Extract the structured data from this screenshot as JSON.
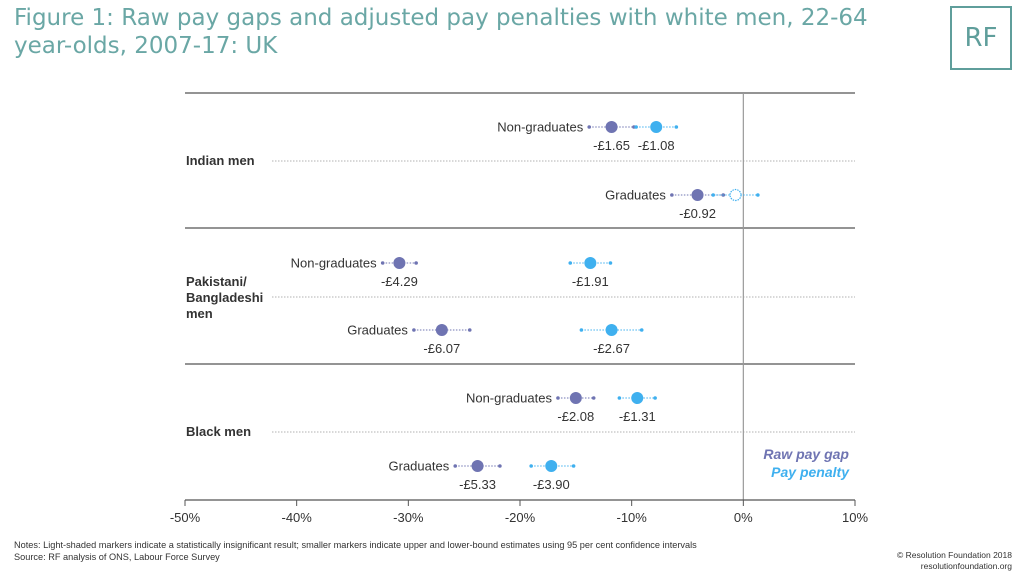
{
  "title": "Figure 1: Raw pay gaps and adjusted pay penalties with white men, 22-64 year-olds, 2007-17: UK",
  "logo": "RF",
  "notes": {
    "line1": "Notes: Light-shaded markers indicate a statistically insignificant result; smaller markers indicate upper and lower-bound estimates using 95 per cent confidence intervals",
    "line2": "Source: RF analysis of ONS, Labour Force Survey"
  },
  "copyright": {
    "line1": "© Resolution Foundation 2018",
    "line2": "resolutionfoundation.org"
  },
  "colors": {
    "raw": "#6f74b2",
    "penalty": "#3fb0ef",
    "teal": "#6aa7a5",
    "axis": "#555555"
  },
  "chart_data": {
    "type": "scatter",
    "xlim": [
      -0.5,
      0.1
    ],
    "xticks": [
      {
        "v": -0.5,
        "label": "-50%"
      },
      {
        "v": -0.4,
        "label": "-40%"
      },
      {
        "v": -0.3,
        "label": "-30%"
      },
      {
        "v": -0.2,
        "label": "-20%"
      },
      {
        "v": -0.1,
        "label": "-10%"
      },
      {
        "v": 0.0,
        "label": "0%"
      },
      {
        "v": 0.1,
        "label": "10%"
      }
    ],
    "legend": {
      "raw": "Raw pay gap",
      "penalty": "Pay penalty",
      "position": "bottom-right"
    },
    "groups": [
      {
        "label": [
          "Indian men"
        ],
        "rows": [
          {
            "name": "Non-graduates",
            "raw": {
              "value": -0.118,
              "low": -0.138,
              "high": -0.098,
              "label": "-£1.65"
            },
            "penalty": {
              "value": -0.078,
              "low": -0.096,
              "high": -0.06,
              "label": "-£1.08",
              "significant": true
            }
          },
          {
            "name": "Graduates",
            "raw": {
              "value": -0.041,
              "low": -0.064,
              "high": -0.018,
              "label": "-£0.92"
            },
            "penalty": {
              "value": -0.007,
              "low": -0.027,
              "high": 0.013,
              "label": "",
              "significant": false
            }
          }
        ]
      },
      {
        "label": [
          "Pakistani/",
          "Bangladeshi",
          "men"
        ],
        "rows": [
          {
            "name": "Non-graduates",
            "raw": {
              "value": -0.308,
              "low": -0.323,
              "high": -0.293,
              "label": "-£4.29"
            },
            "penalty": {
              "value": -0.137,
              "low": -0.155,
              "high": -0.119,
              "label": "-£1.91",
              "significant": true
            }
          },
          {
            "name": "Graduates",
            "raw": {
              "value": -0.27,
              "low": -0.295,
              "high": -0.245,
              "label": "-£6.07"
            },
            "penalty": {
              "value": -0.118,
              "low": -0.145,
              "high": -0.091,
              "label": "-£2.67",
              "significant": true
            }
          }
        ]
      },
      {
        "label": [
          "Black men"
        ],
        "rows": [
          {
            "name": "Non-graduates",
            "raw": {
              "value": -0.15,
              "low": -0.166,
              "high": -0.134,
              "label": "-£2.08"
            },
            "penalty": {
              "value": -0.095,
              "low": -0.111,
              "high": -0.079,
              "label": "-£1.31",
              "significant": true
            }
          },
          {
            "name": "Graduates",
            "raw": {
              "value": -0.238,
              "low": -0.258,
              "high": -0.218,
              "label": "-£5.33"
            },
            "penalty": {
              "value": -0.172,
              "low": -0.19,
              "high": -0.152,
              "label": "-£3.90",
              "significant": true
            }
          }
        ]
      }
    ]
  }
}
